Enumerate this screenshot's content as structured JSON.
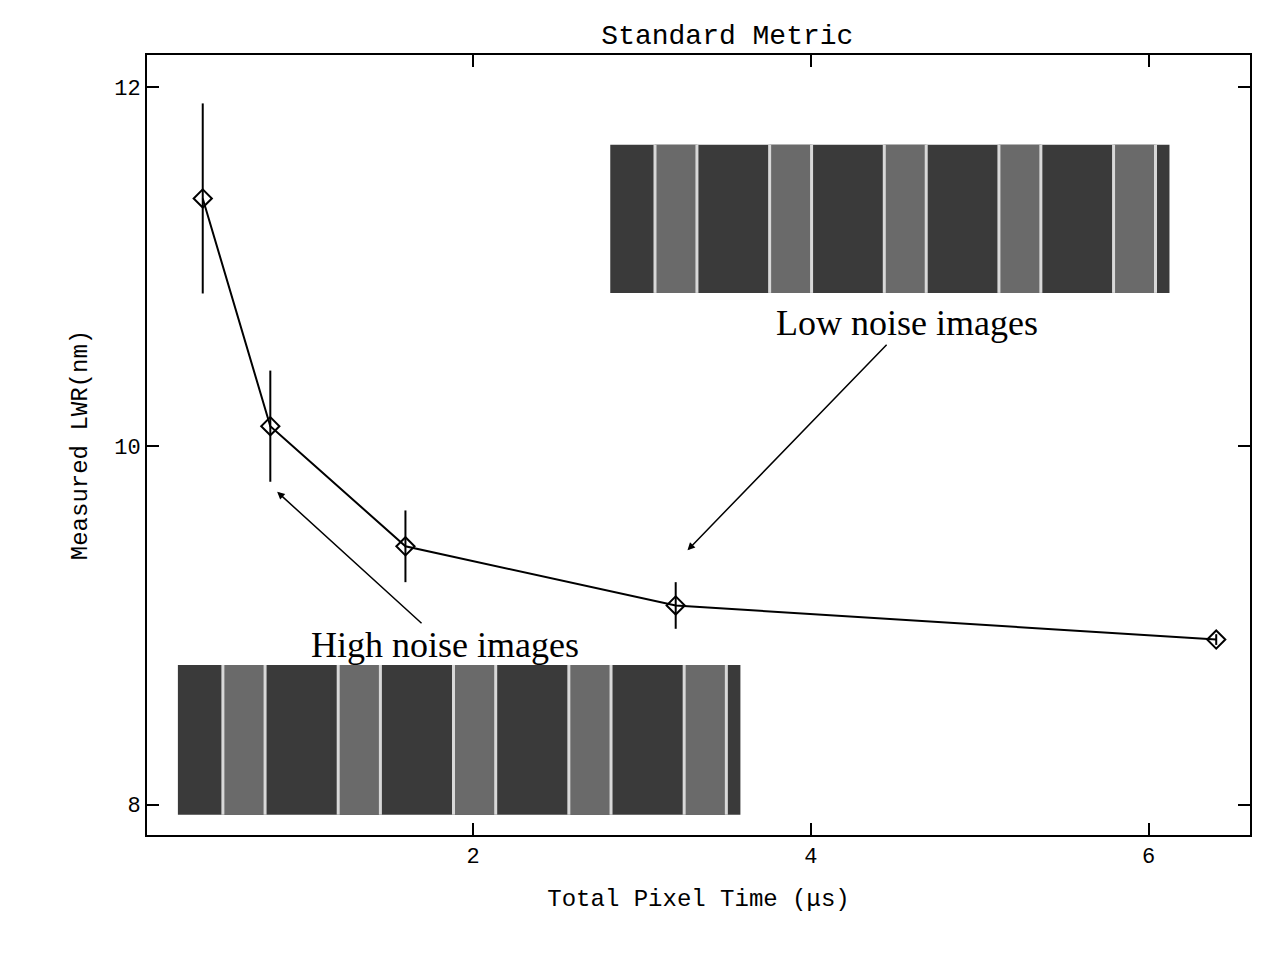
{
  "chart_data": {
    "type": "line",
    "title": "Standard Metric",
    "x_label": "Total Pixel Time (μs)",
    "y_label": "Measured LWR(nm)",
    "x": [
      0.4,
      0.8,
      1.6,
      3.2,
      6.4
    ],
    "values": [
      11.38,
      10.11,
      9.44,
      9.11,
      8.92
    ],
    "errors": [
      0.53,
      0.31,
      0.2,
      0.13,
      0.03
    ],
    "color": "#000000",
    "marker": "diamond-open",
    "xlim": [
      0.07,
      6.6
    ],
    "xticks": [
      2,
      4,
      6
    ],
    "ylim": [
      7.83,
      12.18
    ],
    "yticks": [
      8,
      10,
      12
    ],
    "grid": false,
    "annotations": [
      "High noise images",
      "Low noise images"
    ]
  }
}
